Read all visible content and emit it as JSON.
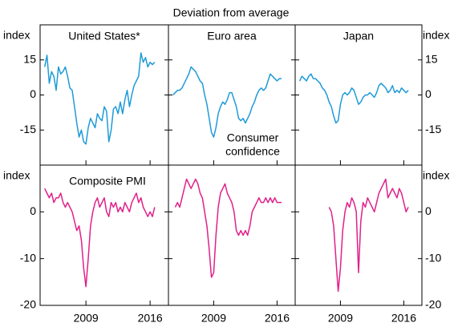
{
  "subtitle": "Deviation from average",
  "chart_data": [
    {
      "type": "line",
      "title": "United States*",
      "ylabel": "index",
      "x": [
        2004.5,
        2004.75,
        2005,
        2005.25,
        2005.5,
        2005.75,
        2006,
        2006.25,
        2006.5,
        2006.75,
        2007,
        2007.25,
        2007.5,
        2007.75,
        2008,
        2008.25,
        2008.5,
        2008.75,
        2009,
        2009.25,
        2009.5,
        2009.75,
        2010,
        2010.25,
        2010.5,
        2010.75,
        2011,
        2011.25,
        2011.5,
        2011.75,
        2012,
        2012.25,
        2012.5,
        2012.75,
        2013,
        2013.25,
        2013.5,
        2013.75,
        2014,
        2014.25,
        2014.5,
        2014.75,
        2015,
        2015.25,
        2015.5,
        2015.75,
        2016,
        2016.25,
        2016.5
      ],
      "series": [
        {
          "color": "#1f9bd7",
          "values": [
            12,
            17,
            5,
            10,
            8,
            2,
            12,
            9,
            10,
            12,
            8,
            3,
            2,
            -5,
            -12,
            -18,
            -15,
            -20,
            -21,
            -14,
            -10,
            -12,
            -14,
            -8,
            -10,
            -11,
            -5,
            -7,
            -20,
            -15,
            -6,
            -5,
            -8,
            -3,
            -8,
            -2,
            2,
            -5,
            0,
            4,
            6,
            8,
            18,
            14,
            16,
            12,
            14,
            13,
            14
          ]
        }
      ],
      "xlim": [
        2004,
        2018
      ],
      "ylim": [
        -30,
        30
      ],
      "xticks": [
        2009,
        2016
      ],
      "yticks": [
        -15,
        0,
        15
      ]
    },
    {
      "type": "line",
      "title": "Euro area",
      "annotation": [
        "Consumer",
        "confidence"
      ],
      "x": [
        2004.5,
        2004.75,
        2005,
        2005.25,
        2005.5,
        2005.75,
        2006,
        2006.25,
        2006.5,
        2006.75,
        2007,
        2007.25,
        2007.5,
        2007.75,
        2008,
        2008.25,
        2008.5,
        2008.75,
        2009,
        2009.25,
        2009.5,
        2009.75,
        2010,
        2010.25,
        2010.5,
        2010.75,
        2011,
        2011.25,
        2011.5,
        2011.75,
        2012,
        2012.25,
        2012.5,
        2012.75,
        2013,
        2013.25,
        2013.5,
        2013.75,
        2014,
        2014.25,
        2014.5,
        2014.75,
        2015,
        2015.25,
        2015.5,
        2015.75,
        2016,
        2016.25,
        2016.5
      ],
      "series": [
        {
          "color": "#1f9bd7",
          "values": [
            0,
            1,
            2,
            2,
            3,
            5,
            7,
            9,
            12,
            11,
            10,
            8,
            6,
            5,
            0,
            -4,
            -10,
            -16,
            -18,
            -14,
            -8,
            -5,
            -3,
            -4,
            -2,
            1,
            1,
            -2,
            -5,
            -10,
            -11,
            -10,
            -12,
            -10,
            -8,
            -5,
            -3,
            0,
            2,
            3,
            2,
            3,
            6,
            9,
            8,
            7,
            6,
            7,
            7
          ]
        }
      ],
      "xlim": [
        2004,
        2018
      ],
      "ylim": [
        -30,
        30
      ],
      "xticks": [
        2009,
        2016
      ],
      "yticks": [
        -15,
        0,
        15
      ]
    },
    {
      "type": "line",
      "title": "Japan",
      "ylabel": "index",
      "x": [
        2004.5,
        2004.75,
        2005,
        2005.25,
        2005.5,
        2005.75,
        2006,
        2006.25,
        2006.5,
        2006.75,
        2007,
        2007.25,
        2007.5,
        2007.75,
        2008,
        2008.25,
        2008.5,
        2008.75,
        2009,
        2009.25,
        2009.5,
        2009.75,
        2010,
        2010.25,
        2010.5,
        2010.75,
        2011,
        2011.25,
        2011.5,
        2011.75,
        2012,
        2012.25,
        2012.5,
        2012.75,
        2013,
        2013.25,
        2013.5,
        2013.75,
        2014,
        2014.25,
        2014.5,
        2014.75,
        2015,
        2015.25,
        2015.5,
        2015.75,
        2016,
        2016.25,
        2016.5
      ],
      "series": [
        {
          "color": "#1f9bd7",
          "values": [
            6,
            8,
            7,
            6,
            8,
            9,
            7,
            7,
            6,
            5,
            3,
            2,
            0,
            -3,
            -5,
            -9,
            -12,
            -11,
            -4,
            0,
            1,
            0,
            1,
            3,
            2,
            -1,
            -4,
            -3,
            -1,
            0,
            0,
            1,
            0,
            -1,
            1,
            4,
            5,
            4,
            3,
            1,
            2,
            4,
            1,
            2,
            1,
            3,
            2,
            1,
            2
          ]
        }
      ],
      "xlim": [
        2004,
        2018
      ],
      "ylim": [
        -30,
        30
      ],
      "xticks": [
        2009,
        2016
      ],
      "yticks": [
        -15,
        0,
        15
      ]
    },
    {
      "type": "line",
      "ylabel": "index",
      "annotation": "Composite PMI",
      "x": [
        2004.5,
        2004.75,
        2005,
        2005.25,
        2005.5,
        2005.75,
        2006,
        2006.25,
        2006.5,
        2006.75,
        2007,
        2007.25,
        2007.5,
        2007.75,
        2008,
        2008.25,
        2008.5,
        2008.75,
        2009,
        2009.25,
        2009.5,
        2009.75,
        2010,
        2010.25,
        2010.5,
        2010.75,
        2011,
        2011.25,
        2011.5,
        2011.75,
        2012,
        2012.25,
        2012.5,
        2012.75,
        2013,
        2013.25,
        2013.5,
        2013.75,
        2014,
        2014.25,
        2014.5,
        2014.75,
        2015,
        2015.25,
        2015.5,
        2015.75,
        2016,
        2016.25,
        2016.5
      ],
      "series": [
        {
          "color": "#e0218a",
          "values": [
            5,
            4,
            3,
            4,
            2,
            3,
            3,
            4,
            2,
            1,
            2,
            1,
            0,
            -2,
            -4,
            -3,
            -6,
            -12,
            -16,
            -10,
            -3,
            0,
            2,
            3,
            1,
            2,
            3,
            0,
            -1,
            2,
            1,
            2,
            0,
            1,
            0,
            2,
            1,
            0,
            2,
            3,
            4,
            2,
            3,
            1,
            0,
            -1,
            0,
            -1,
            1
          ]
        }
      ],
      "xlim": [
        2004,
        2018
      ],
      "ylim": [
        -20,
        10
      ],
      "xticks": [
        2009,
        2016
      ],
      "yticks": [
        -20,
        -10,
        0
      ]
    },
    {
      "type": "line",
      "x": [
        2004.5,
        2004.75,
        2005,
        2005.25,
        2005.5,
        2005.75,
        2006,
        2006.25,
        2006.5,
        2006.75,
        2007,
        2007.25,
        2007.5,
        2007.75,
        2008,
        2008.25,
        2008.5,
        2008.75,
        2009,
        2009.25,
        2009.5,
        2009.75,
        2010,
        2010.25,
        2010.5,
        2010.75,
        2011,
        2011.25,
        2011.5,
        2011.75,
        2012,
        2012.25,
        2012.5,
        2012.75,
        2013,
        2013.25,
        2013.5,
        2013.75,
        2014,
        2014.25,
        2014.5,
        2014.75,
        2015,
        2015.25,
        2015.5,
        2015.75,
        2016,
        2016.25,
        2016.5
      ],
      "series": [
        {
          "color": "#e0218a",
          "values": [
            null,
            1,
            2,
            1,
            3,
            5,
            7,
            6,
            5,
            6,
            7,
            6,
            4,
            3,
            0,
            -3,
            -8,
            -14,
            -13,
            -5,
            1,
            4,
            5,
            6,
            4,
            3,
            2,
            0,
            -4,
            -5,
            -4,
            -5,
            -4,
            -5,
            -3,
            0,
            1,
            2,
            3,
            2,
            2,
            3,
            2,
            3,
            2,
            3,
            2,
            2,
            2
          ]
        }
      ],
      "xlim": [
        2004,
        2018
      ],
      "ylim": [
        -20,
        10
      ],
      "xticks": [
        2009,
        2016
      ],
      "yticks": [
        -20,
        -10,
        0
      ]
    },
    {
      "type": "line",
      "ylabel": "index",
      "x": [
        2004.5,
        2004.75,
        2005,
        2005.25,
        2005.5,
        2005.75,
        2006,
        2006.25,
        2006.5,
        2006.75,
        2007,
        2007.25,
        2007.5,
        2007.75,
        2008,
        2008.25,
        2008.5,
        2008.75,
        2009,
        2009.25,
        2009.5,
        2009.75,
        2010,
        2010.25,
        2010.5,
        2010.75,
        2011,
        2011.25,
        2011.5,
        2011.75,
        2012,
        2012.25,
        2012.5,
        2012.75,
        2013,
        2013.25,
        2013.5,
        2013.75,
        2014,
        2014.25,
        2014.5,
        2014.75,
        2015,
        2015.25,
        2015.5,
        2015.75,
        2016,
        2016.25,
        2016.5
      ],
      "series": [
        {
          "color": "#e0218a",
          "values": [
            null,
            null,
            null,
            null,
            null,
            null,
            null,
            null,
            null,
            null,
            null,
            null,
            null,
            1,
            0,
            -3,
            -10,
            -17,
            -12,
            -4,
            0,
            2,
            1,
            3,
            2,
            0,
            -13,
            -2,
            2,
            1,
            3,
            2,
            1,
            0,
            2,
            4,
            5,
            6,
            7,
            3,
            4,
            5,
            4,
            3,
            5,
            4,
            2,
            0,
            1
          ]
        }
      ],
      "xlim": [
        2004,
        2018
      ],
      "ylim": [
        -20,
        10
      ],
      "xticks": [
        2009,
        2016
      ],
      "yticks": [
        -20,
        -10,
        0
      ]
    }
  ]
}
